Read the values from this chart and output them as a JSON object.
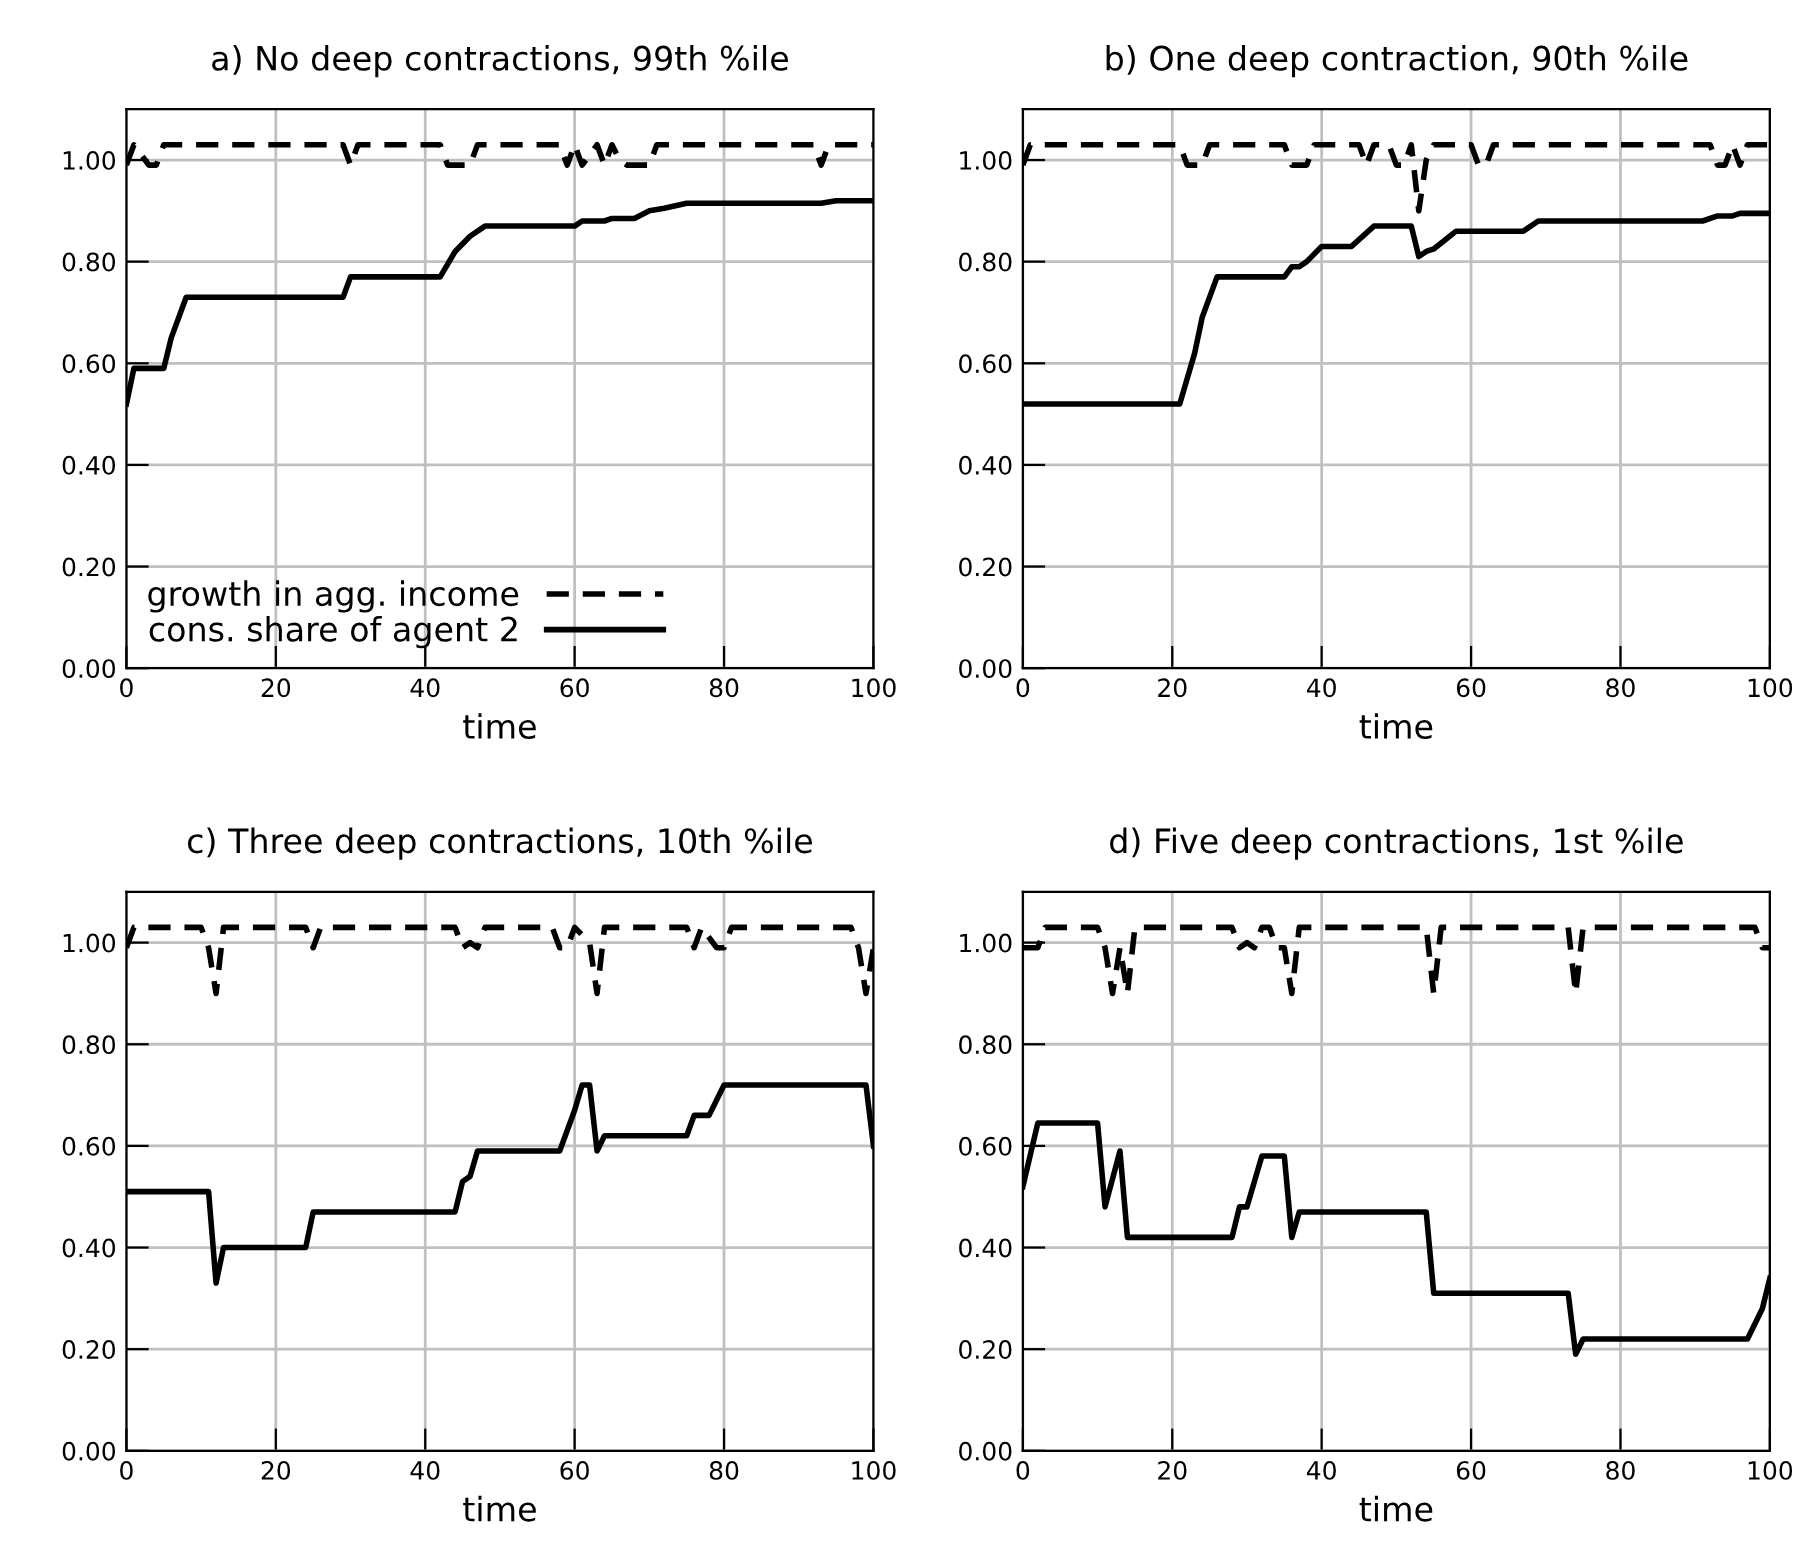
{
  "chart_data": [
    {
      "type": "line",
      "title": "a) No deep contractions, 99th %ile",
      "xlabel": "time",
      "xlim": [
        0,
        100
      ],
      "xticks": [
        0,
        20,
        40,
        60,
        80,
        100
      ],
      "ylim": [
        0,
        1.1
      ],
      "yticks": [
        {
          "value": 0,
          "label": "0.00"
        },
        {
          "value": 0.2,
          "label": "0.20"
        },
        {
          "value": 0.4,
          "label": "0.40"
        },
        {
          "value": 0.6,
          "label": "0.60"
        },
        {
          "value": 0.8,
          "label": "0.80"
        },
        {
          "value": 1.0,
          "label": "1.00"
        }
      ],
      "grid": true,
      "legend": "bottom left",
      "series": [
        {
          "name": "growth in agg. income",
          "color": "#000000",
          "line_style": "dashed",
          "x": [
            0,
            1,
            3,
            4,
            5,
            29,
            30,
            31,
            42,
            43,
            46,
            47,
            48,
            58,
            59,
            60,
            61,
            63,
            64,
            65,
            66,
            67,
            68,
            70,
            71,
            92,
            93,
            94,
            100
          ],
          "values": [
            0.99,
            1.03,
            0.99,
            0.99,
            1.03,
            1.03,
            0.99,
            1.03,
            1.03,
            0.99,
            0.99,
            1.03,
            1.03,
            1.03,
            0.99,
            1.03,
            0.99,
            1.03,
            0.99,
            1.03,
            1.0,
            0.99,
            0.99,
            0.99,
            1.03,
            1.03,
            0.99,
            1.03,
            1.03
          ]
        },
        {
          "name": "cons. share of agent 2",
          "color": "#000000",
          "line_style": "solid",
          "x": [
            0,
            1,
            5,
            6,
            8,
            29,
            30,
            42,
            44,
            46,
            48,
            60,
            61,
            64,
            65,
            68,
            70,
            72,
            75,
            93,
            95,
            100
          ],
          "values": [
            0.52,
            0.59,
            0.59,
            0.65,
            0.73,
            0.73,
            0.77,
            0.77,
            0.82,
            0.85,
            0.87,
            0.87,
            0.88,
            0.88,
            0.885,
            0.885,
            0.9,
            0.905,
            0.915,
            0.915,
            0.92,
            0.92
          ]
        }
      ]
    },
    {
      "type": "line",
      "title": "b) One deep contraction, 90th %ile",
      "xlabel": "time",
      "xlim": [
        0,
        100
      ],
      "xticks": [
        0,
        20,
        40,
        60,
        80,
        100
      ],
      "ylim": [
        0,
        1.1
      ],
      "yticks": [
        {
          "value": 0,
          "label": "0.00"
        },
        {
          "value": 0.2,
          "label": "0.20"
        },
        {
          "value": 0.4,
          "label": "0.40"
        },
        {
          "value": 0.6,
          "label": "0.60"
        },
        {
          "value": 0.8,
          "label": "0.80"
        },
        {
          "value": 1.0,
          "label": "1.00"
        }
      ],
      "grid": true,
      "series": [
        {
          "color": "#000000",
          "line_style": "dashed",
          "x": [
            0,
            1,
            21,
            22,
            24,
            25,
            35,
            36,
            38,
            39,
            45,
            46,
            47,
            49,
            50,
            51,
            52,
            53,
            54,
            55,
            60,
            61,
            62,
            63,
            92,
            93,
            94,
            95,
            96,
            97,
            100
          ],
          "values": [
            0.99,
            1.03,
            1.03,
            0.99,
            0.99,
            1.03,
            1.03,
            0.99,
            0.99,
            1.03,
            1.03,
            0.99,
            1.03,
            1.03,
            0.99,
            0.99,
            1.03,
            0.9,
            1.0,
            1.03,
            1.03,
            0.99,
            0.99,
            1.03,
            1.03,
            0.99,
            0.99,
            1.03,
            0.99,
            1.03,
            1.03
          ]
        },
        {
          "color": "#000000",
          "line_style": "solid",
          "x": [
            0,
            21,
            23,
            24,
            26,
            35,
            36,
            37,
            38,
            40,
            44,
            47,
            52,
            53,
            54,
            55,
            58,
            67,
            69,
            91,
            93,
            95,
            96,
            100
          ],
          "values": [
            0.52,
            0.52,
            0.62,
            0.69,
            0.77,
            0.77,
            0.79,
            0.79,
            0.8,
            0.83,
            0.83,
            0.87,
            0.87,
            0.81,
            0.82,
            0.825,
            0.86,
            0.86,
            0.88,
            0.88,
            0.89,
            0.89,
            0.895,
            0.895
          ]
        }
      ]
    },
    {
      "type": "line",
      "title": "c) Three deep contractions, 10th %ile",
      "xlabel": "time",
      "xlim": [
        0,
        100
      ],
      "xticks": [
        0,
        20,
        40,
        60,
        80,
        100
      ],
      "ylim": [
        0,
        1.1
      ],
      "yticks": [
        {
          "value": 0,
          "label": "0.00"
        },
        {
          "value": 0.2,
          "label": "0.20"
        },
        {
          "value": 0.4,
          "label": "0.40"
        },
        {
          "value": 0.6,
          "label": "0.60"
        },
        {
          "value": 0.8,
          "label": "0.80"
        },
        {
          "value": 1.0,
          "label": "1.00"
        }
      ],
      "grid": true,
      "series": [
        {
          "color": "#000000",
          "line_style": "dashed",
          "x": [
            0,
            1,
            10,
            11,
            12,
            13,
            24,
            25,
            26,
            44,
            45,
            46,
            47,
            48,
            57,
            58,
            59,
            60,
            62,
            63,
            64,
            75,
            76,
            77,
            79,
            80,
            81,
            97,
            98,
            99,
            100
          ],
          "values": [
            0.99,
            1.03,
            1.03,
            0.99,
            0.9,
            1.03,
            1.03,
            0.99,
            1.03,
            1.03,
            0.99,
            1.0,
            0.99,
            1.03,
            1.03,
            0.99,
            0.99,
            1.03,
            1.0,
            0.9,
            1.03,
            1.03,
            0.99,
            1.03,
            0.99,
            0.99,
            1.03,
            1.03,
            0.99,
            0.9,
            0.99
          ]
        },
        {
          "color": "#000000",
          "line_style": "solid",
          "x": [
            0,
            11,
            12,
            13,
            24,
            25,
            44,
            45,
            46,
            47,
            58,
            60,
            61,
            62,
            63,
            64,
            75,
            76,
            78,
            80,
            99,
            100
          ],
          "values": [
            0.51,
            0.51,
            0.33,
            0.4,
            0.4,
            0.47,
            0.47,
            0.53,
            0.54,
            0.59,
            0.59,
            0.67,
            0.72,
            0.72,
            0.59,
            0.62,
            0.62,
            0.66,
            0.66,
            0.72,
            0.72,
            0.6
          ]
        }
      ]
    },
    {
      "type": "line",
      "title": "d) Five deep contractions, 1st %ile",
      "xlabel": "time",
      "xlim": [
        0,
        100
      ],
      "xticks": [
        0,
        20,
        40,
        60,
        80,
        100
      ],
      "ylim": [
        0,
        1.1
      ],
      "yticks": [
        {
          "value": 0,
          "label": "0.00"
        },
        {
          "value": 0.2,
          "label": "0.20"
        },
        {
          "value": 0.4,
          "label": "0.40"
        },
        {
          "value": 0.6,
          "label": "0.60"
        },
        {
          "value": 0.8,
          "label": "0.80"
        },
        {
          "value": 1.0,
          "label": "1.00"
        }
      ],
      "grid": true,
      "series": [
        {
          "color": "#000000",
          "line_style": "dashed",
          "x": [
            0,
            2,
            3,
            10,
            11,
            12,
            13,
            14,
            15,
            28,
            29,
            30,
            31,
            32,
            33,
            34,
            35,
            36,
            37,
            54,
            55,
            56,
            73,
            74,
            75,
            98,
            99,
            100
          ],
          "values": [
            0.99,
            0.99,
            1.03,
            1.03,
            0.99,
            0.9,
            0.99,
            0.9,
            1.03,
            1.03,
            0.99,
            1.0,
            0.99,
            1.03,
            1.03,
            0.99,
            0.99,
            0.9,
            1.03,
            1.03,
            0.9,
            1.03,
            1.03,
            0.9,
            1.03,
            1.03,
            0.99,
            0.99
          ]
        },
        {
          "color": "#000000",
          "line_style": "solid",
          "x": [
            0,
            2,
            10,
            11,
            13,
            14,
            28,
            29,
            30,
            32,
            35,
            36,
            37,
            54,
            55,
            73,
            74,
            75,
            97,
            99,
            100
          ],
          "values": [
            0.52,
            0.645,
            0.645,
            0.48,
            0.59,
            0.42,
            0.42,
            0.48,
            0.48,
            0.58,
            0.58,
            0.42,
            0.47,
            0.47,
            0.31,
            0.31,
            0.19,
            0.22,
            0.22,
            0.28,
            0.34
          ]
        }
      ]
    }
  ]
}
